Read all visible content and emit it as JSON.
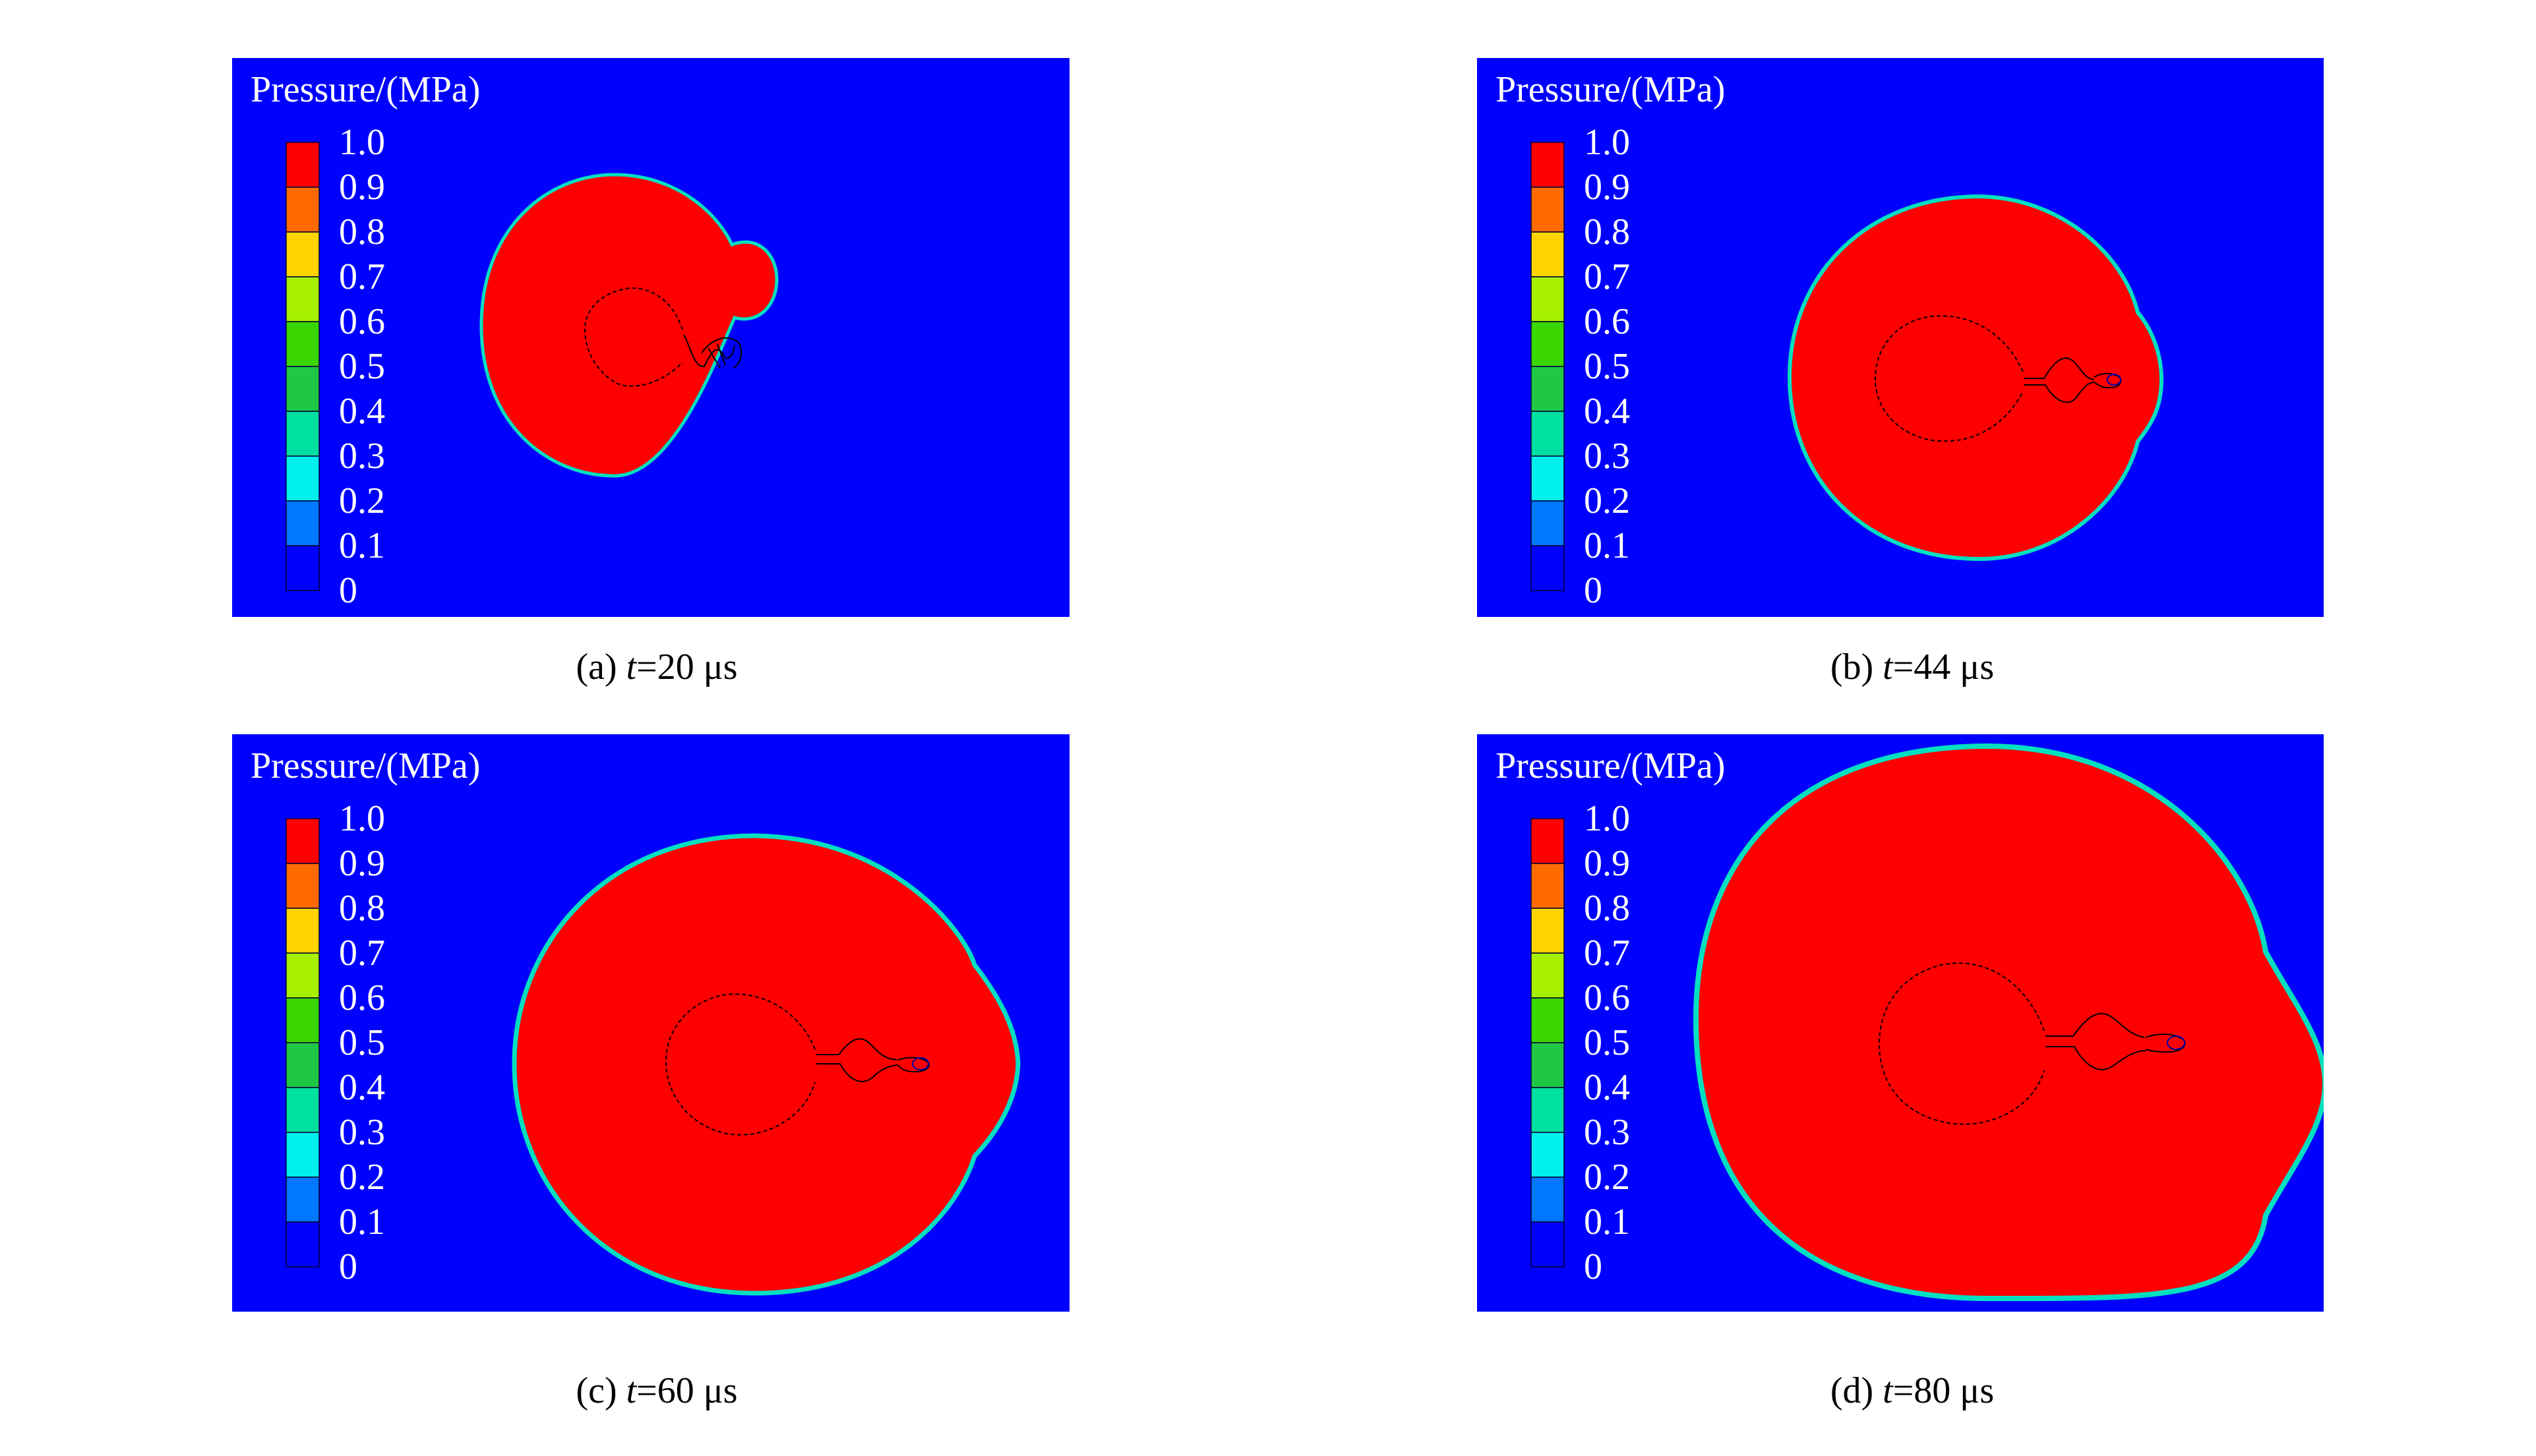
{
  "legend": {
    "title": "Pressure/(MPa)",
    "ticks": [
      "1.0",
      "0.9",
      "0.8",
      "0.7",
      "0.6",
      "0.5",
      "0.4",
      "0.3",
      "0.2",
      "0.1",
      "0"
    ],
    "colors": [
      "#ff0000",
      "#ff6a00",
      "#ffd400",
      "#a6f000",
      "#3ad600",
      "#1ec846",
      "#00e0a0",
      "#00f0f0",
      "#0078ff",
      "#0000ff"
    ]
  },
  "colors": {
    "background": "#0000ff",
    "high_pressure": "#ff0000",
    "front_edge": "#00e0c0",
    "contour_line": "#000000"
  },
  "panels": [
    {
      "label": "(a)",
      "time_symbol": "t",
      "time_value": "=20 μs"
    },
    {
      "label": "(b)",
      "time_symbol": "t",
      "time_value": "=44 μs"
    },
    {
      "label": "(c)",
      "time_symbol": "t",
      "time_value": "=60 μs"
    },
    {
      "label": "(d)",
      "time_symbol": "t",
      "time_value": "=80 μs"
    }
  ]
}
